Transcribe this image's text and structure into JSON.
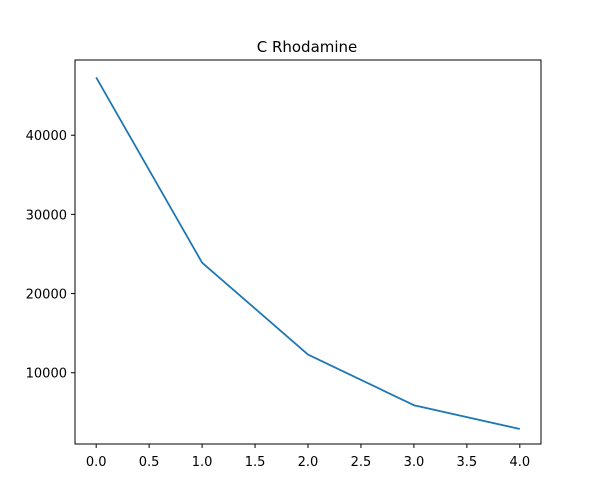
{
  "chart_data": {
    "type": "line",
    "title": "C Rhodamine",
    "xlabel": "",
    "ylabel": "",
    "x": [
      0,
      1,
      2,
      3,
      4
    ],
    "series": [
      {
        "values": [
          47300,
          23900,
          12300,
          5900,
          2900
        ],
        "color": "#1f77b4"
      }
    ],
    "xlim": [
      -0.2,
      4.2
    ],
    "ylim": [
      1000,
      49500
    ],
    "xticks": [
      0.0,
      0.5,
      1.0,
      1.5,
      2.0,
      2.5,
      3.0,
      3.5,
      4.0
    ],
    "xtick_labels": [
      "0.0",
      "0.5",
      "1.0",
      "1.5",
      "2.0",
      "2.5",
      "3.0",
      "3.5",
      "4.0"
    ],
    "yticks": [
      10000,
      20000,
      30000,
      40000
    ],
    "ytick_labels": [
      "10000",
      "20000",
      "30000",
      "40000"
    ],
    "grid": false,
    "legend": "none"
  }
}
